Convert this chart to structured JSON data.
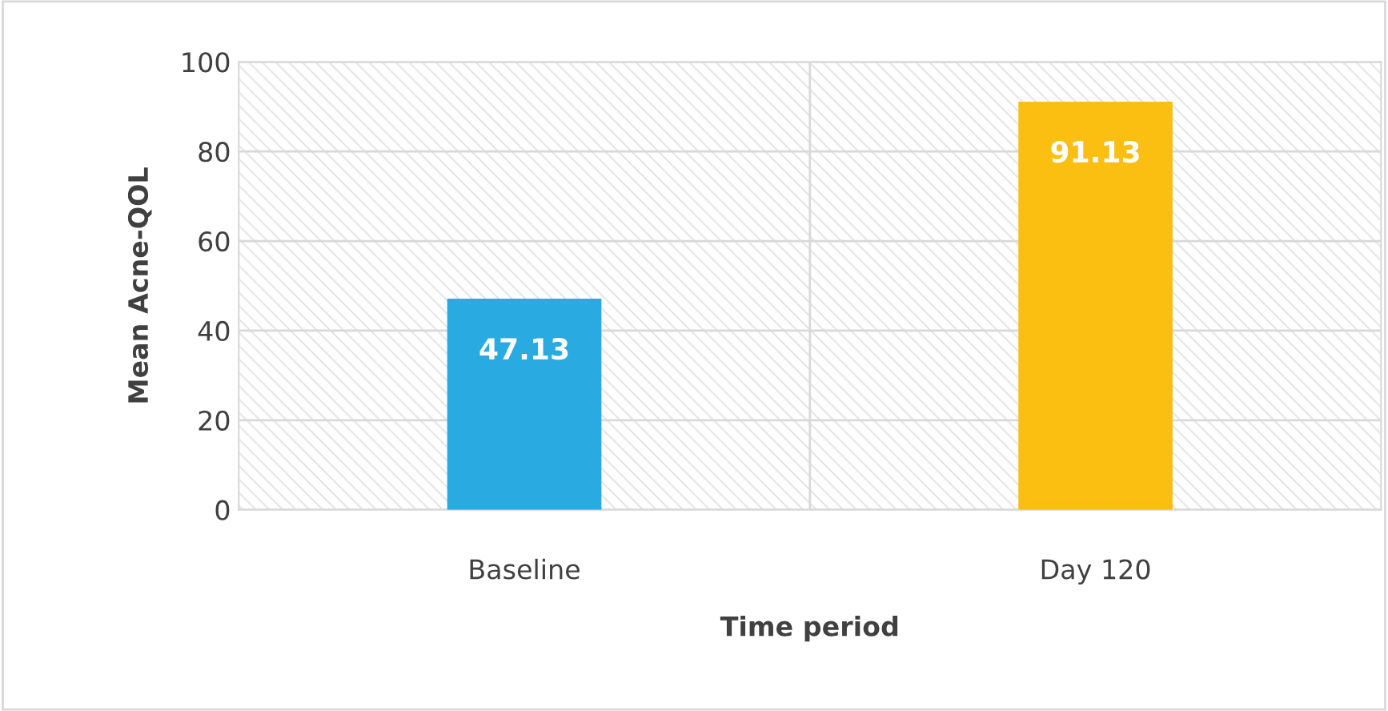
{
  "chart_data": {
    "type": "bar",
    "xlabel": "Time period",
    "ylabel": "Mean Acne-QOL",
    "categories": [
      "Baseline",
      "Day 120"
    ],
    "values": [
      47.13,
      91.13
    ],
    "colors": [
      "#29abe2",
      "#fbbf12"
    ],
    "ylim": [
      0,
      100
    ],
    "yticks": [
      0,
      20,
      40,
      60,
      80,
      100
    ],
    "grid": true,
    "data_labels": true
  }
}
